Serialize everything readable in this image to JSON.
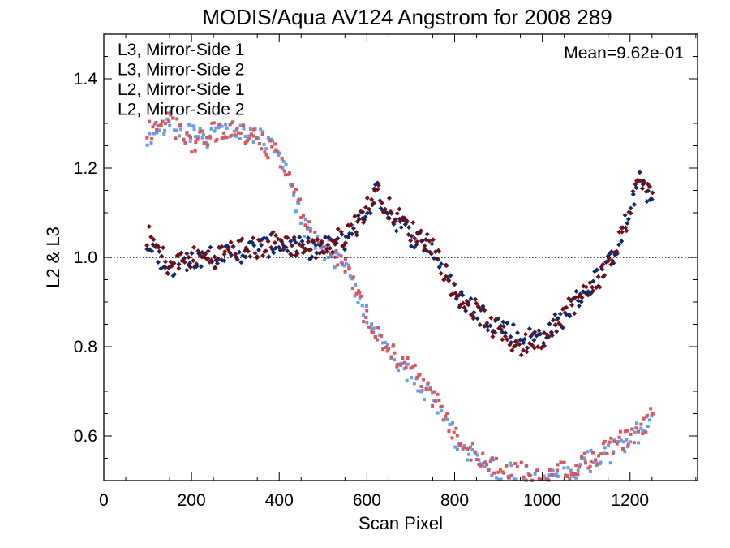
{
  "chart_data": {
    "type": "scatter",
    "title": "MODIS/Aqua AV124 Angstrom for 2008 289",
    "xlabel": "Scan Pixel",
    "ylabel": "L2 & L3",
    "xlim": [
      0,
      1354
    ],
    "ylim": [
      0.5,
      1.5
    ],
    "xticks": [
      0,
      200,
      400,
      600,
      800,
      1000,
      1200
    ],
    "xtick_labels": [
      "0",
      "200",
      "400",
      "600",
      "800",
      "1000",
      "1200"
    ],
    "yticks": [
      0.6,
      0.8,
      1.0,
      1.2,
      1.4
    ],
    "ytick_labels": [
      "0.6",
      "0.8",
      "1.0",
      "1.2",
      "1.4"
    ],
    "reference_line": {
      "y": 1.0,
      "style": "dotted"
    },
    "annotation": {
      "text": "Mean=9.62e-01",
      "placement": "top-right",
      "color": "#d9575c"
    },
    "legend_placement": "top-left",
    "grid": false,
    "series": [
      {
        "name": "L3, Mirror-Side 1",
        "color": "#0d2a6b",
        "marker": "diamond",
        "x": [
          100,
          150,
          200,
          250,
          300,
          350,
          400,
          450,
          500,
          550,
          600,
          620,
          650,
          700,
          750,
          800,
          850,
          900,
          950,
          1000,
          1050,
          1100,
          1150,
          1200,
          1220,
          1250
        ],
        "y": [
          1.03,
          0.98,
          1.0,
          1.0,
          1.01,
          1.02,
          1.03,
          1.02,
          1.02,
          1.04,
          1.1,
          1.15,
          1.1,
          1.05,
          1.02,
          0.92,
          0.88,
          0.85,
          0.82,
          0.82,
          0.87,
          0.93,
          0.98,
          1.1,
          1.17,
          1.13
        ]
      },
      {
        "name": "L3, Mirror-Side 2",
        "color": "#720f16",
        "marker": "diamond",
        "x": [
          100,
          150,
          200,
          250,
          300,
          350,
          400,
          450,
          500,
          550,
          600,
          620,
          650,
          700,
          750,
          800,
          850,
          900,
          950,
          1000,
          1050,
          1100,
          1150,
          1200,
          1220,
          1250
        ],
        "y": [
          1.05,
          0.98,
          1.0,
          1.0,
          1.02,
          1.02,
          1.04,
          1.02,
          1.02,
          1.05,
          1.11,
          1.15,
          1.11,
          1.06,
          1.03,
          0.92,
          0.88,
          0.83,
          0.8,
          0.82,
          0.88,
          0.92,
          0.98,
          1.1,
          1.18,
          1.13
        ]
      },
      {
        "name": "L2, Mirror-Side 1",
        "color": "#6b9be6",
        "marker": "square",
        "x": [
          100,
          150,
          200,
          250,
          300,
          350,
          400,
          450,
          500,
          550,
          600,
          650,
          700,
          750,
          800,
          850,
          900,
          950,
          1000,
          1050,
          1100,
          1150,
          1200,
          1250
        ],
        "y": [
          1.27,
          1.31,
          1.27,
          1.27,
          1.29,
          1.27,
          1.24,
          1.08,
          1.02,
          0.98,
          0.87,
          0.79,
          0.74,
          0.68,
          0.6,
          0.54,
          0.52,
          0.51,
          0.5,
          0.52,
          0.54,
          0.56,
          0.59,
          0.64
        ]
      },
      {
        "name": "L2, Mirror-Side 2",
        "color": "#d9575c",
        "marker": "square",
        "x": [
          100,
          150,
          200,
          250,
          300,
          350,
          400,
          450,
          500,
          550,
          600,
          650,
          700,
          750,
          800,
          850,
          900,
          950,
          1000,
          1050,
          1100,
          1150,
          1200,
          1250
        ],
        "y": [
          1.28,
          1.3,
          1.26,
          1.28,
          1.28,
          1.26,
          1.23,
          1.1,
          1.03,
          0.98,
          0.86,
          0.79,
          0.75,
          0.69,
          0.61,
          0.55,
          0.53,
          0.52,
          0.5,
          0.52,
          0.54,
          0.57,
          0.6,
          0.64
        ]
      }
    ]
  }
}
